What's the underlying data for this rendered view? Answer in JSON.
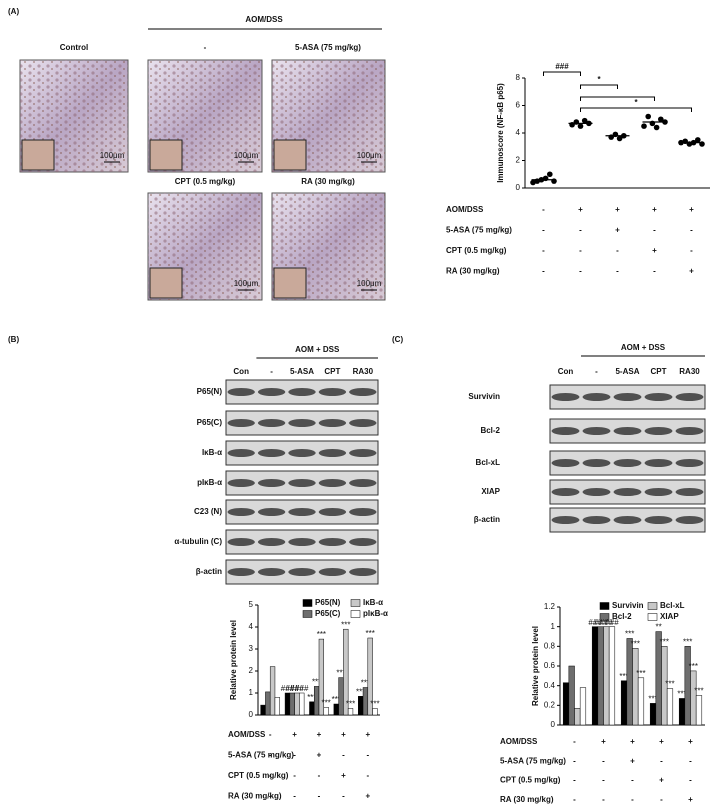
{
  "panels": [
    {
      "label": "(A)"
    },
    {
      "label": "(B)"
    },
    {
      "label": "(C)"
    }
  ],
  "panel_a_images": {
    "header": "AOM/DSS",
    "images": [
      {
        "title": "Control",
        "scale": "100μm"
      },
      {
        "title": "-",
        "scale": "100μm"
      },
      {
        "title": "5-ASA (75 mg/kg)",
        "scale": "100μm"
      },
      {
        "title": "CPT (0.5 mg/kg)",
        "scale": "100μm"
      },
      {
        "title": "RA (30 mg/kg)",
        "scale": "100μm"
      }
    ]
  },
  "blot_b": {
    "header": "AOM + DSS",
    "lanes": [
      "Con",
      "-",
      "5-ASA",
      "CPT",
      "RA30"
    ],
    "rows": [
      "P65(N)",
      "P65(C)",
      "IκB-α",
      "pIκB-α",
      "C23 (N)",
      "α-tubulin (C)",
      "β-actin"
    ]
  },
  "blot_c": {
    "header": "AOM + DSS",
    "lanes": [
      "Con",
      "-",
      "5-ASA",
      "CPT",
      "RA30"
    ],
    "rows": [
      "Survivin",
      "Bcl-2",
      "Bcl-xL",
      "XIAP",
      "β-actin"
    ]
  },
  "chart_data": [
    {
      "type": "scatter",
      "y_label": "Immunoscore (NF-κB p65)",
      "color": "#000000",
      "ylim": [
        0,
        8
      ],
      "yticks": [
        0,
        2,
        4,
        6,
        8
      ],
      "groups": [
        {
          "values": [
            0.4,
            0.5,
            0.6,
            0.7,
            1.0,
            0.5
          ],
          "mean": 0.6
        },
        {
          "values": [
            4.6,
            4.8,
            4.5,
            4.9,
            4.7
          ],
          "mean": 4.7
        },
        {
          "values": [
            3.7,
            3.9,
            3.6,
            3.8
          ],
          "mean": 3.8
        },
        {
          "values": [
            4.5,
            5.2,
            4.7,
            4.4,
            5.0,
            4.8
          ],
          "mean": 4.8
        },
        {
          "values": [
            3.3,
            3.4,
            3.2,
            3.3,
            3.5,
            3.2
          ],
          "mean": 3.3
        }
      ],
      "annotations": [
        "###",
        "*",
        "*"
      ],
      "treatment": [
        {
          "label": "AOM/DSS",
          "signs": [
            "-",
            "+",
            "+",
            "+",
            "+"
          ]
        },
        {
          "label": "5-ASA (75 mg/kg)",
          "signs": [
            "-",
            "-",
            "+",
            "-",
            "-"
          ]
        },
        {
          "label": "CPT (0.5 mg/kg)",
          "signs": [
            "-",
            "-",
            "-",
            "+",
            "-"
          ]
        },
        {
          "label": "RA (30 mg/kg)",
          "signs": [
            "-",
            "-",
            "-",
            "-",
            "+"
          ]
        }
      ]
    },
    {
      "type": "bar",
      "y_label": "Relative protein level",
      "ylim": [
        0,
        5
      ],
      "yticks": [
        0,
        1,
        2,
        3,
        4,
        5
      ],
      "series": [
        {
          "name": "P65(N)",
          "color": "#000000",
          "values": [
            0.45,
            1.0,
            0.6,
            0.5,
            0.85
          ],
          "stars": [
            null,
            "###",
            "***",
            "***",
            "***"
          ]
        },
        {
          "name": "P65(C)",
          "color": "#6e6e6e",
          "values": [
            1.05,
            1.0,
            1.3,
            1.7,
            1.25
          ],
          "stars": [
            null,
            "###",
            "***",
            "***",
            "***"
          ]
        },
        {
          "name": "IκB-α",
          "color": "#c8c8c8",
          "values": [
            2.2,
            1.0,
            3.45,
            3.9,
            3.5
          ],
          "stars": [
            null,
            "###",
            "***",
            "***",
            "***"
          ]
        },
        {
          "name": "pIκB-α",
          "color": "#ffffff",
          "values": [
            0.8,
            1.0,
            0.35,
            0.3,
            0.3
          ],
          "stars": [
            null,
            "###",
            "***",
            "***",
            "***"
          ]
        }
      ],
      "treatment": [
        {
          "label": "AOM/DSS",
          "signs": [
            "-",
            "+",
            "+",
            "+",
            "+"
          ]
        },
        {
          "label": "5-ASA (75 mg/kg)",
          "signs": [
            "-",
            "-",
            "+",
            "-",
            "-"
          ]
        },
        {
          "label": "CPT (0.5 mg/kg)",
          "signs": [
            "-",
            "-",
            "-",
            "+",
            "-"
          ]
        },
        {
          "label": "RA (30 mg/kg)",
          "signs": [
            "-",
            "-",
            "-",
            "-",
            "+"
          ]
        }
      ]
    },
    {
      "type": "bar",
      "y_label": "Relative protein level",
      "ylim": [
        0,
        1.2
      ],
      "yticks": [
        0,
        0.2,
        0.4,
        0.6,
        0.8,
        1,
        1.2
      ],
      "series": [
        {
          "name": "Survivin",
          "color": "#000000",
          "values": [
            0.43,
            1.0,
            0.45,
            0.22,
            0.27
          ],
          "stars": [
            null,
            "###",
            "***",
            "***",
            "***"
          ]
        },
        {
          "name": "Bcl-2",
          "color": "#6e6e6e",
          "values": [
            0.6,
            1.0,
            0.88,
            0.95,
            0.8
          ],
          "stars": [
            null,
            "###",
            "***",
            "**",
            "***"
          ]
        },
        {
          "name": "Bcl-xL",
          "color": "#c8c8c8",
          "values": [
            0.17,
            1.0,
            0.78,
            0.8,
            0.55
          ],
          "stars": [
            null,
            "###",
            "***",
            "***",
            "***"
          ]
        },
        {
          "name": "XIAP",
          "color": "#ffffff",
          "values": [
            0.38,
            1.0,
            0.48,
            0.37,
            0.3
          ],
          "stars": [
            null,
            "###",
            "***",
            "***",
            "***"
          ]
        }
      ],
      "treatment": [
        {
          "label": "AOM/DSS",
          "signs": [
            "-",
            "+",
            "+",
            "+",
            "+"
          ]
        },
        {
          "label": "5-ASA (75 mg/kg)",
          "signs": [
            "-",
            "-",
            "+",
            "-",
            "-"
          ]
        },
        {
          "label": "CPT (0.5 mg/kg)",
          "signs": [
            "-",
            "-",
            "-",
            "+",
            "-"
          ]
        },
        {
          "label": "RA (30 mg/kg)",
          "signs": [
            "-",
            "-",
            "-",
            "-",
            "+"
          ]
        }
      ]
    }
  ]
}
